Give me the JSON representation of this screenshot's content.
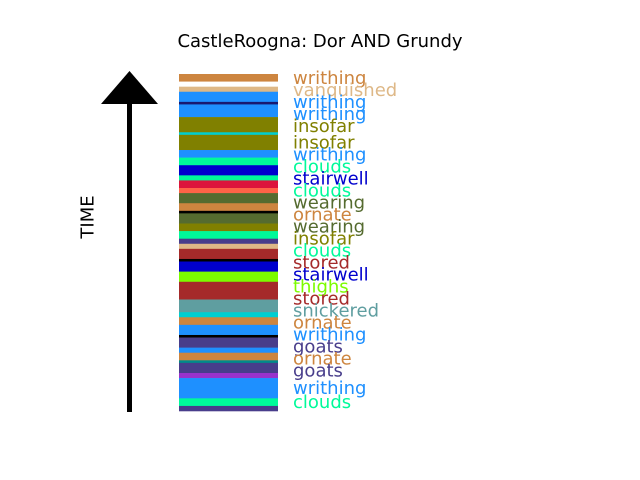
{
  "chart_data": {
    "type": "bar",
    "title": "CastleRoogna: Dor AND Grundy",
    "ylabel": "TIME",
    "xlabel": "",
    "legend": "none",
    "grid": false,
    "stripes": [
      {
        "label": "writhing",
        "color": "#cd853f"
      },
      {
        "label": "",
        "color": "#ffffff"
      },
      {
        "label": "vanquished",
        "color": "#deb887"
      },
      {
        "label": "writhing",
        "color": "#1e90ff"
      },
      {
        "label": "",
        "color": "#191970"
      },
      {
        "label": "writhing",
        "color": "#1e90ff"
      },
      {
        "label": "insofar",
        "color": "#808000"
      },
      {
        "label": "",
        "color": "#00ced1"
      },
      {
        "label": "insofar",
        "color": "#808000"
      },
      {
        "label": "writhing",
        "color": "#1e90ff"
      },
      {
        "label": "clouds",
        "color": "#00fa9a"
      },
      {
        "label": "stairwell",
        "color": "#0000cd"
      },
      {
        "label": "clouds",
        "color": "#00fa9a"
      },
      {
        "label": "",
        "color": "#dc143c"
      },
      {
        "label": "",
        "color": "#ff6347"
      },
      {
        "label": "wearing",
        "color": "#556b2f"
      },
      {
        "label": "ornate",
        "color": "#cd853f"
      },
      {
        "label": "",
        "color": "#000000"
      },
      {
        "label": "wearing",
        "color": "#556b2f"
      },
      {
        "label": "insofar",
        "color": "#808000"
      },
      {
        "label": "clouds",
        "color": "#00fa9a"
      },
      {
        "label": "",
        "color": "#483d8b"
      },
      {
        "label": "",
        "color": "#deb887"
      },
      {
        "label": "stored",
        "color": "#a52a2a"
      },
      {
        "label": "",
        "color": "#000000"
      },
      {
        "label": "stairwell",
        "color": "#0000cd"
      },
      {
        "label": "thighs",
        "color": "#7cfc00"
      },
      {
        "label": "stored",
        "color": "#a52a2a"
      },
      {
        "label": "snickered",
        "color": "#5f9ea0"
      },
      {
        "label": "",
        "color": "#00ced1"
      },
      {
        "label": "ornate",
        "color": "#cd853f"
      },
      {
        "label": "writhing",
        "color": "#1e90ff"
      },
      {
        "label": "",
        "color": "#000000"
      },
      {
        "label": "goats",
        "color": "#483d8b"
      },
      {
        "label": "",
        "color": "#1e90ff"
      },
      {
        "label": "ornate",
        "color": "#cd853f"
      },
      {
        "label": "",
        "color": "#008b8b"
      },
      {
        "label": "goats",
        "color": "#483d8b"
      },
      {
        "label": "",
        "color": "#9932cc"
      },
      {
        "label": "writhing",
        "color": "#1e90ff"
      },
      {
        "label": "clouds",
        "color": "#00fa9a"
      },
      {
        "label": "",
        "color": "#483d8b"
      }
    ]
  }
}
